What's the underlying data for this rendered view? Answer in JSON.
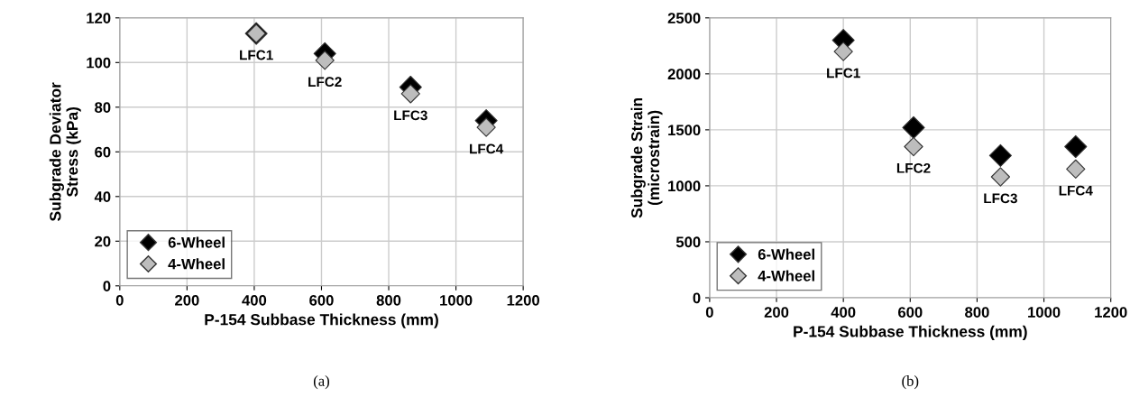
{
  "chart_data": [
    {
      "type": "scatter",
      "xlabel": "P-154 Subbase Thickness (mm)",
      "ylabel": "Subgrade Deviator\nStress (kPa)",
      "x": [
        406,
        610,
        865,
        1090
      ],
      "series": [
        {
          "name": "6-Wheel",
          "color": "#000000",
          "values": [
            113,
            104,
            89,
            74
          ]
        },
        {
          "name": "4-Wheel",
          "color": "#bdbdbd",
          "values": [
            113,
            101,
            86,
            71
          ]
        }
      ],
      "xlim": [
        0,
        1200
      ],
      "xticks": [
        0,
        200,
        400,
        600,
        800,
        1000,
        1200
      ],
      "ylim": [
        0,
        120
      ],
      "yticks": [
        0,
        20,
        40,
        60,
        80,
        100,
        120
      ],
      "grid": true,
      "legend": "bottom left",
      "marker": "diamond",
      "annotations": [
        {
          "text": "LFC1",
          "x": 406,
          "y": 113
        },
        {
          "text": "LFC2",
          "x": 610,
          "y": 101
        },
        {
          "text": "LFC3",
          "x": 865,
          "y": 86
        },
        {
          "text": "LFC4",
          "x": 1090,
          "y": 71
        },
        "(a)"
      ]
    },
    {
      "type": "scatter",
      "xlabel": "P-154 Subbase Thickness (mm)",
      "ylabel": "Subgrade Strain\n(microstrain)",
      "x": [
        400,
        610,
        870,
        1095
      ],
      "series": [
        {
          "name": "6-Wheel",
          "color": "#000000",
          "values": [
            2300,
            1520,
            1270,
            1350
          ]
        },
        {
          "name": "4-Wheel",
          "color": "#bdbdbd",
          "values": [
            2200,
            1350,
            1080,
            1150
          ]
        }
      ],
      "xlim": [
        0,
        1200
      ],
      "xticks": [
        0,
        200,
        400,
        600,
        800,
        1000,
        1200
      ],
      "ylim": [
        0,
        2500
      ],
      "yticks": [
        0,
        500,
        1000,
        1500,
        2000,
        2500
      ],
      "grid": true,
      "legend": "bottom left",
      "marker": "diamond",
      "annotations": [
        {
          "text": "LFC1",
          "x": 400,
          "y": 2200
        },
        {
          "text": "LFC2",
          "x": 610,
          "y": 1350
        },
        {
          "text": "LFC3",
          "x": 870,
          "y": 1080
        },
        {
          "text": "LFC4",
          "x": 1095,
          "y": 1150
        },
        "(b)"
      ]
    }
  ]
}
